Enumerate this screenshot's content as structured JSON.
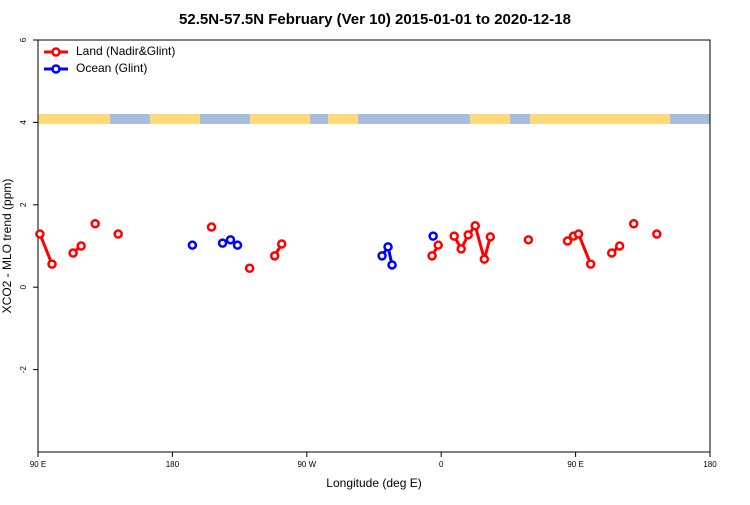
{
  "chart_data": {
    "type": "line",
    "title": "52.5N-57.5N February (Ver 10)   2015-01-01 to 2020-12-18",
    "xlabel": "Longitude (deg E)",
    "ylabel": "XCO2 - MLO trend (ppm)",
    "xlim": [
      90,
      540
    ],
    "ylim": [
      -4,
      6
    ],
    "xticks": [
      {
        "value": 90,
        "label": "90 E"
      },
      180,
      {
        "value": 270,
        "label": "90 W"
      },
      {
        "value": 360,
        "label": "0"
      },
      {
        "value": 450,
        "label": "90 E"
      },
      {
        "value": 540,
        "label": "180"
      }
    ],
    "yticks": [
      -2,
      0,
      2,
      4,
      6
    ],
    "legend": "topleft",
    "series": [
      {
        "name": "Land (Nadir&Glint)",
        "color": "#ff0000",
        "x": [
          91.3,
          99.4,
          null,
          113.5,
          118.9,
          null,
          128.3,
          null,
          143.7,
          null,
          206.2,
          null,
          231.7,
          null,
          248.5,
          253.2,
          null,
          353.9,
          358.0,
          null,
          368.7,
          373.4,
          378.1,
          382.8,
          388.9,
          392.9,
          null,
          418.4,
          null,
          444.6,
          448.6,
          452.0,
          460.1,
          null,
          474.2,
          479.5,
          null,
          488.9,
          null,
          504.4
        ],
        "values": [
          1.29,
          0.56,
          null,
          0.83,
          1.0,
          null,
          1.54,
          null,
          1.29,
          null,
          1.46,
          null,
          0.46,
          null,
          0.76,
          1.05,
          null,
          0.76,
          1.02,
          null,
          1.24,
          0.93,
          1.27,
          1.49,
          0.68,
          1.22,
          null,
          1.15,
          null,
          1.12,
          1.24,
          1.29,
          0.56,
          null,
          0.83,
          1.0,
          null,
          1.54,
          null,
          1.29
        ]
      },
      {
        "name": "Ocean (Glint)",
        "color": "#0000ff",
        "x": [
          193.4,
          null,
          213.6,
          218.9,
          223.6,
          null,
          320.4,
          324.4,
          327.1,
          null,
          354.6
        ],
        "values": [
          1.02,
          null,
          1.07,
          1.15,
          1.02,
          null,
          0.76,
          0.98,
          0.54,
          null,
          1.24
        ]
      }
    ]
  }
}
